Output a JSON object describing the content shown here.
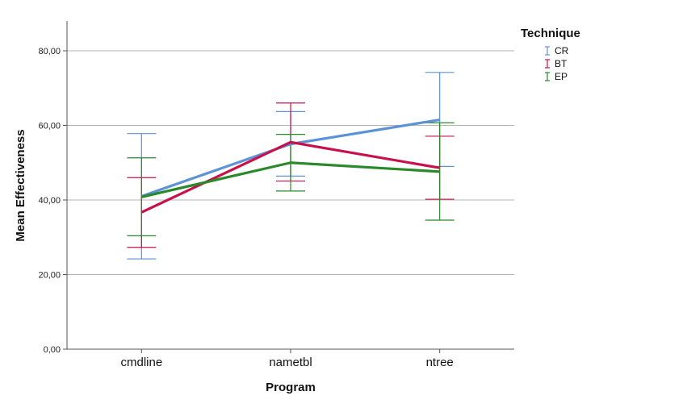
{
  "chart_data": {
    "type": "line",
    "xlabel": "Program",
    "ylabel": "Mean Effectiveness",
    "categories": [
      "cmdline",
      "nametbl",
      "ntree"
    ],
    "ylim": [
      0,
      88
    ],
    "yticks": [
      0,
      20,
      40,
      60,
      80
    ],
    "ytick_labels": [
      "0,00",
      "20,00",
      "40,00",
      "60,00",
      "80,00"
    ],
    "grid": true,
    "legend": {
      "title": "Technique",
      "position": "top-right"
    },
    "error_bars": true,
    "series": [
      {
        "name": "CR",
        "color": "#5b93d6",
        "values": [
          41.0,
          55.0,
          61.5
        ],
        "lower": [
          24.2,
          46.4,
          49.0
        ],
        "upper": [
          57.8,
          63.7,
          74.2
        ]
      },
      {
        "name": "BT",
        "color": "#c8104a",
        "values": [
          36.7,
          55.5,
          48.6
        ],
        "lower": [
          27.3,
          45.1,
          40.2
        ],
        "upper": [
          46.0,
          66.0,
          57.1
        ]
      },
      {
        "name": "EP",
        "color": "#2a8a2a",
        "values": [
          40.8,
          50.0,
          47.6
        ],
        "lower": [
          30.4,
          42.4,
          34.6
        ],
        "upper": [
          51.3,
          57.6,
          60.7
        ]
      }
    ]
  }
}
